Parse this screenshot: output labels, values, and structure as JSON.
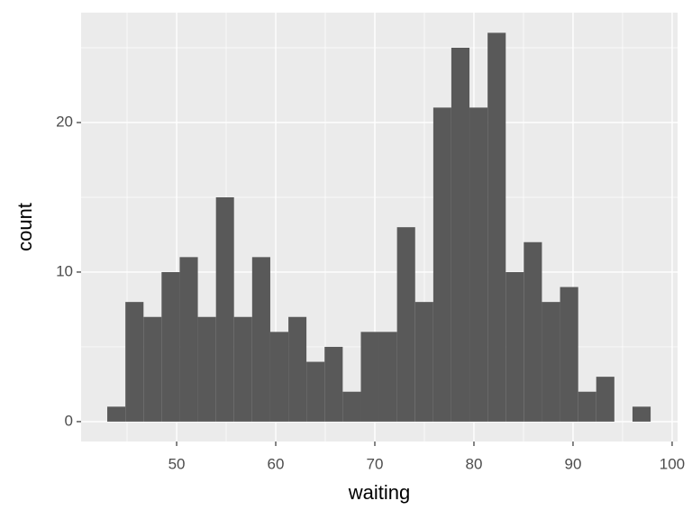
{
  "chart_data": {
    "type": "histogram",
    "x_label": "waiting",
    "y_label": "count",
    "bins": [
      43.0,
      44.83,
      46.66,
      48.48,
      50.31,
      52.14,
      53.97,
      55.79,
      57.62,
      59.45,
      61.28,
      63.1,
      64.93,
      66.76,
      68.59,
      70.41,
      72.24,
      74.07,
      75.9,
      77.72,
      79.55,
      81.38,
      83.21,
      85.03,
      86.86,
      88.69,
      90.52,
      92.34,
      94.17,
      96.0,
      97.83
    ],
    "values": [
      1,
      8,
      7,
      10,
      11,
      7,
      15,
      7,
      11,
      6,
      7,
      4,
      5,
      2,
      6,
      6,
      13,
      8,
      21,
      25,
      21,
      26,
      10,
      12,
      8,
      9,
      2,
      3,
      0,
      1
    ],
    "color": "#595959",
    "xlim": [
      40.36,
      100.55
    ],
    "xticks": [
      50,
      60,
      70,
      80,
      90,
      100
    ],
    "ylim": [
      -1.33,
      27.35
    ],
    "yticks": [
      0,
      10,
      20
    ],
    "grid": true
  }
}
